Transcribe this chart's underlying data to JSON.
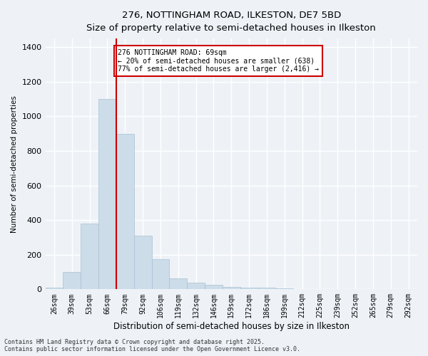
{
  "title_line1": "276, NOTTINGHAM ROAD, ILKESTON, DE7 5BD",
  "title_line2": "Size of property relative to semi-detached houses in Ilkeston",
  "xlabel": "Distribution of semi-detached houses by size in Ilkeston",
  "ylabel": "Number of semi-detached properties",
  "bar_color": "#ccdce8",
  "bar_edge_color": "#aac0d4",
  "background_color": "#eef2f7",
  "grid_color": "#ffffff",
  "vline_color": "#cc0000",
  "annotation_text": "276 NOTTINGHAM ROAD: 69sqm\n← 20% of semi-detached houses are smaller (638)\n77% of semi-detached houses are larger (2,416) →",
  "annotation_box_color": "#ffffff",
  "annotation_border_color": "#cc0000",
  "categories": [
    "26sqm",
    "39sqm",
    "53sqm",
    "66sqm",
    "79sqm",
    "92sqm",
    "106sqm",
    "119sqm",
    "132sqm",
    "146sqm",
    "159sqm",
    "172sqm",
    "186sqm",
    "199sqm",
    "212sqm",
    "225sqm",
    "239sqm",
    "252sqm",
    "265sqm",
    "279sqm",
    "292sqm"
  ],
  "values": [
    8,
    100,
    380,
    1100,
    900,
    310,
    175,
    65,
    40,
    25,
    15,
    10,
    10,
    5,
    2,
    1,
    0,
    0,
    0,
    0,
    0
  ],
  "ylim": [
    0,
    1450
  ],
  "yticks": [
    0,
    200,
    400,
    600,
    800,
    1000,
    1200,
    1400
  ],
  "footnote": "Contains HM Land Registry data © Crown copyright and database right 2025.\nContains public sector information licensed under the Open Government Licence v3.0."
}
